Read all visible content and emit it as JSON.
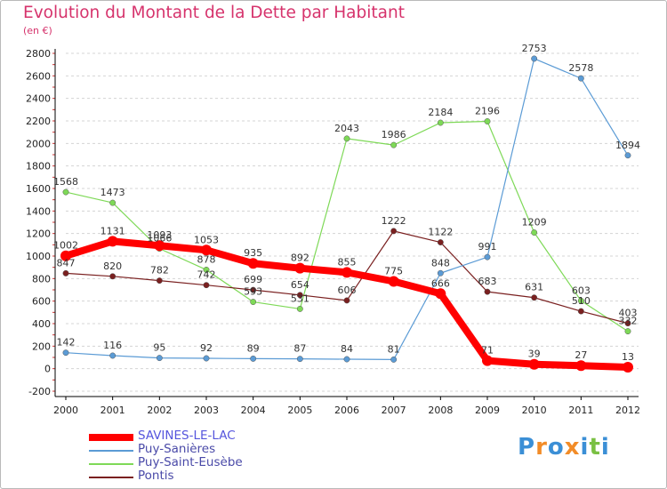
{
  "chart_data": {
    "type": "line",
    "title": "Evolution du Montant de la Dette par Habitant",
    "subtitle": "(en €)",
    "xlabel": "",
    "ylabel": "",
    "x": [
      "2000",
      "2001",
      "2002",
      "2003",
      "2004",
      "2005",
      "2006",
      "2007",
      "2008",
      "2009",
      "2010",
      "2011",
      "2012"
    ],
    "ylim": [
      -200,
      2800
    ],
    "yticks": [
      -200,
      0,
      200,
      400,
      600,
      800,
      1000,
      1200,
      1400,
      1600,
      1800,
      2000,
      2200,
      2400,
      2600,
      2800
    ],
    "grid": "horizontal dashed",
    "legend_position": "bottom-left",
    "series": [
      {
        "name": "Puy-Saint-Eusèbe",
        "color": "#7ed957",
        "width": 1.2,
        "values": [
          1568,
          1473,
          1066,
          878,
          593,
          531,
          2043,
          1986,
          2184,
          2196,
          1209,
          603,
          332
        ]
      },
      {
        "name": "Pontis",
        "color": "#7a2020",
        "width": 1.2,
        "values": [
          847,
          820,
          782,
          742,
          699,
          654,
          606,
          1222,
          1122,
          683,
          631,
          510,
          403
        ]
      },
      {
        "name": "Puy-Sanières",
        "color": "#5b9bd5",
        "width": 1.2,
        "values": [
          142,
          116,
          95,
          92,
          89,
          87,
          84,
          81,
          848,
          991,
          2753,
          2578,
          1894
        ]
      },
      {
        "name": "SAVINES-LE-LAC",
        "color": "#ff0000",
        "width": 8,
        "values": [
          1002,
          1131,
          1093,
          1053,
          935,
          892,
          855,
          775,
          666,
          71,
          39,
          27,
          13
        ]
      }
    ]
  },
  "logo": {
    "text": "Proxiti"
  },
  "colors": {
    "title": "#d6336c",
    "grid": "#d0d0d0",
    "axis": "#000000"
  }
}
